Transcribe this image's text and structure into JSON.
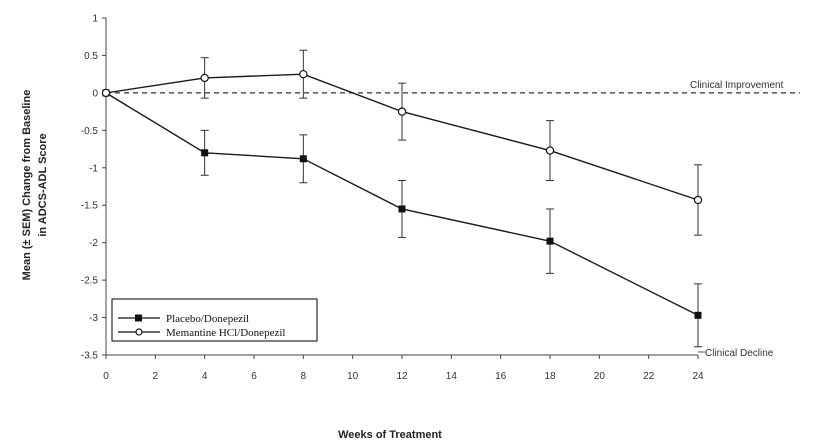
{
  "chart_data": {
    "type": "line",
    "title": "",
    "xlabel": "Weeks of Treatment",
    "ylabel_lines": [
      "Mean (± SEM) Change from Baseline",
      "in ADCS-ADL Score"
    ],
    "xlim": [
      0,
      24
    ],
    "ylim": [
      -3.5,
      1
    ],
    "xticks": [
      0,
      2,
      4,
      6,
      8,
      10,
      12,
      14,
      16,
      18,
      20,
      22,
      24
    ],
    "yticks": [
      1,
      0.5,
      0,
      -0.5,
      -1,
      -1.5,
      -2,
      -2.5,
      -3,
      -3.5
    ],
    "reference_line": {
      "y": 0,
      "style": "dashed"
    },
    "annotations": {
      "improvement": "Clinical Improvement",
      "decline": "Clinical Decline"
    },
    "legend": {
      "position": "bottom-left"
    },
    "series": [
      {
        "name": "Placebo/Donepezil",
        "marker": "filled-square",
        "x": [
          0,
          4,
          8,
          12,
          18,
          24
        ],
        "values": [
          0,
          -0.8,
          -0.88,
          -1.55,
          -1.98,
          -2.97
        ],
        "error": [
          0,
          0.3,
          0.32,
          0.38,
          0.43,
          0.42
        ]
      },
      {
        "name": "Memantine HCl/Donepezil",
        "marker": "open-circle",
        "x": [
          0,
          4,
          8,
          12,
          18,
          24
        ],
        "values": [
          0,
          0.2,
          0.25,
          -0.25,
          -0.77,
          -1.43
        ],
        "error": [
          0,
          0.27,
          0.32,
          0.38,
          0.4,
          0.47
        ]
      }
    ]
  }
}
